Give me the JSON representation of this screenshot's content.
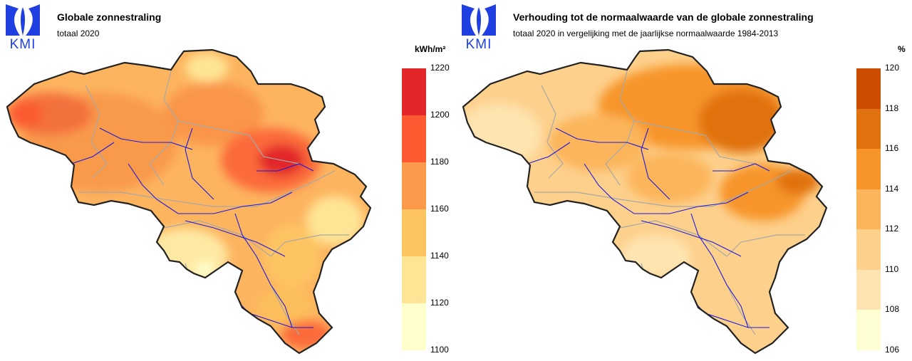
{
  "left": {
    "logo_text": "KMI",
    "title": "Globale zonnestraling",
    "subtitle": "totaal 2020",
    "unit": "kWh/m²",
    "legend": {
      "ticks": [
        "1220",
        "1200",
        "1180",
        "1160",
        "1140",
        "1120",
        "1100"
      ],
      "colors": [
        "#e2262a",
        "#fd5a32",
        "#fc9a4c",
        "#fec462",
        "#fee596",
        "#ffffcc"
      ]
    }
  },
  "right": {
    "logo_text": "KMI",
    "title": "Verhouding tot de normaalwaarde van de globale zonnestraling",
    "subtitle": "totaal 2020 in vergelijking met de jaarlijkse normaalwaarde 1984-2013",
    "unit": "%",
    "legend": {
      "ticks": [
        "120",
        "118",
        "116",
        "114",
        "112",
        "110",
        "108",
        "106"
      ],
      "colors": [
        "#cc4c02",
        "#e0720f",
        "#f7952a",
        "#fcb55a",
        "#fdd08c",
        "#fee4b0",
        "#ffffd4"
      ]
    }
  },
  "colors": {
    "logo_blue": "#1f3fe0",
    "border": "#222222",
    "river": "#1a1adb",
    "province": "#a8a8a8"
  }
}
